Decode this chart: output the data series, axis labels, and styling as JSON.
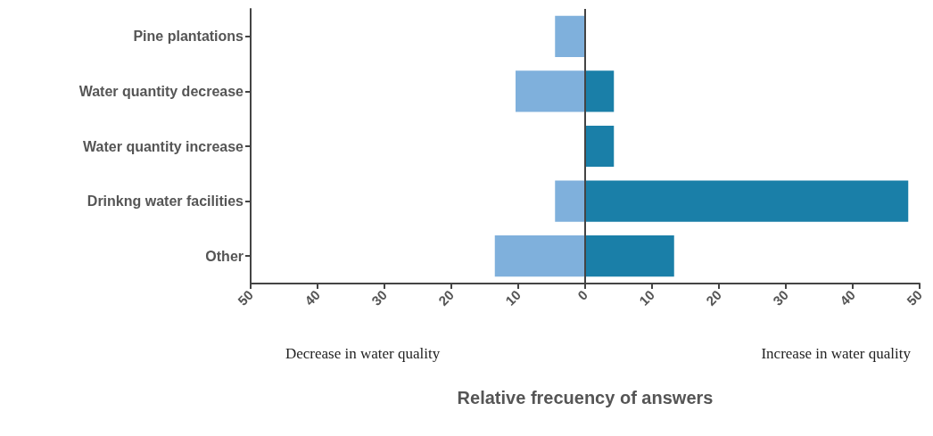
{
  "chart_data": {
    "type": "bar",
    "orientation": "horizontal",
    "stacked": true,
    "categories": [
      "Pine plantations",
      "Water quantity decrease",
      "Water quantity increase",
      "Drinkng water facilities",
      "Other"
    ],
    "series": [
      {
        "color": "#7fb0dc",
        "values": [
          -4.5,
          -10.4,
          null,
          -4.5,
          -13.5
        ]
      },
      {
        "color": "#1a7fa8",
        "values": [
          null,
          4.3,
          4.3,
          48.3,
          13.3
        ]
      }
    ],
    "xlim": [
      -50,
      50
    ],
    "xticks": [
      {
        "value": -50,
        "label": "50"
      },
      {
        "value": -40,
        "label": "40"
      },
      {
        "value": -30,
        "label": "30"
      },
      {
        "value": -20,
        "label": "20"
      },
      {
        "value": -10,
        "label": "10"
      },
      0,
      10,
      20,
      30,
      40,
      50
    ],
    "xlabel": "Relative frecuency of answers",
    "annotations": [
      "Decrease in water quality",
      "Increase in water quality"
    ],
    "ref_lines": [
      {
        "axis": "x",
        "value": 0,
        "color": "#444444"
      }
    ],
    "grid": false
  }
}
